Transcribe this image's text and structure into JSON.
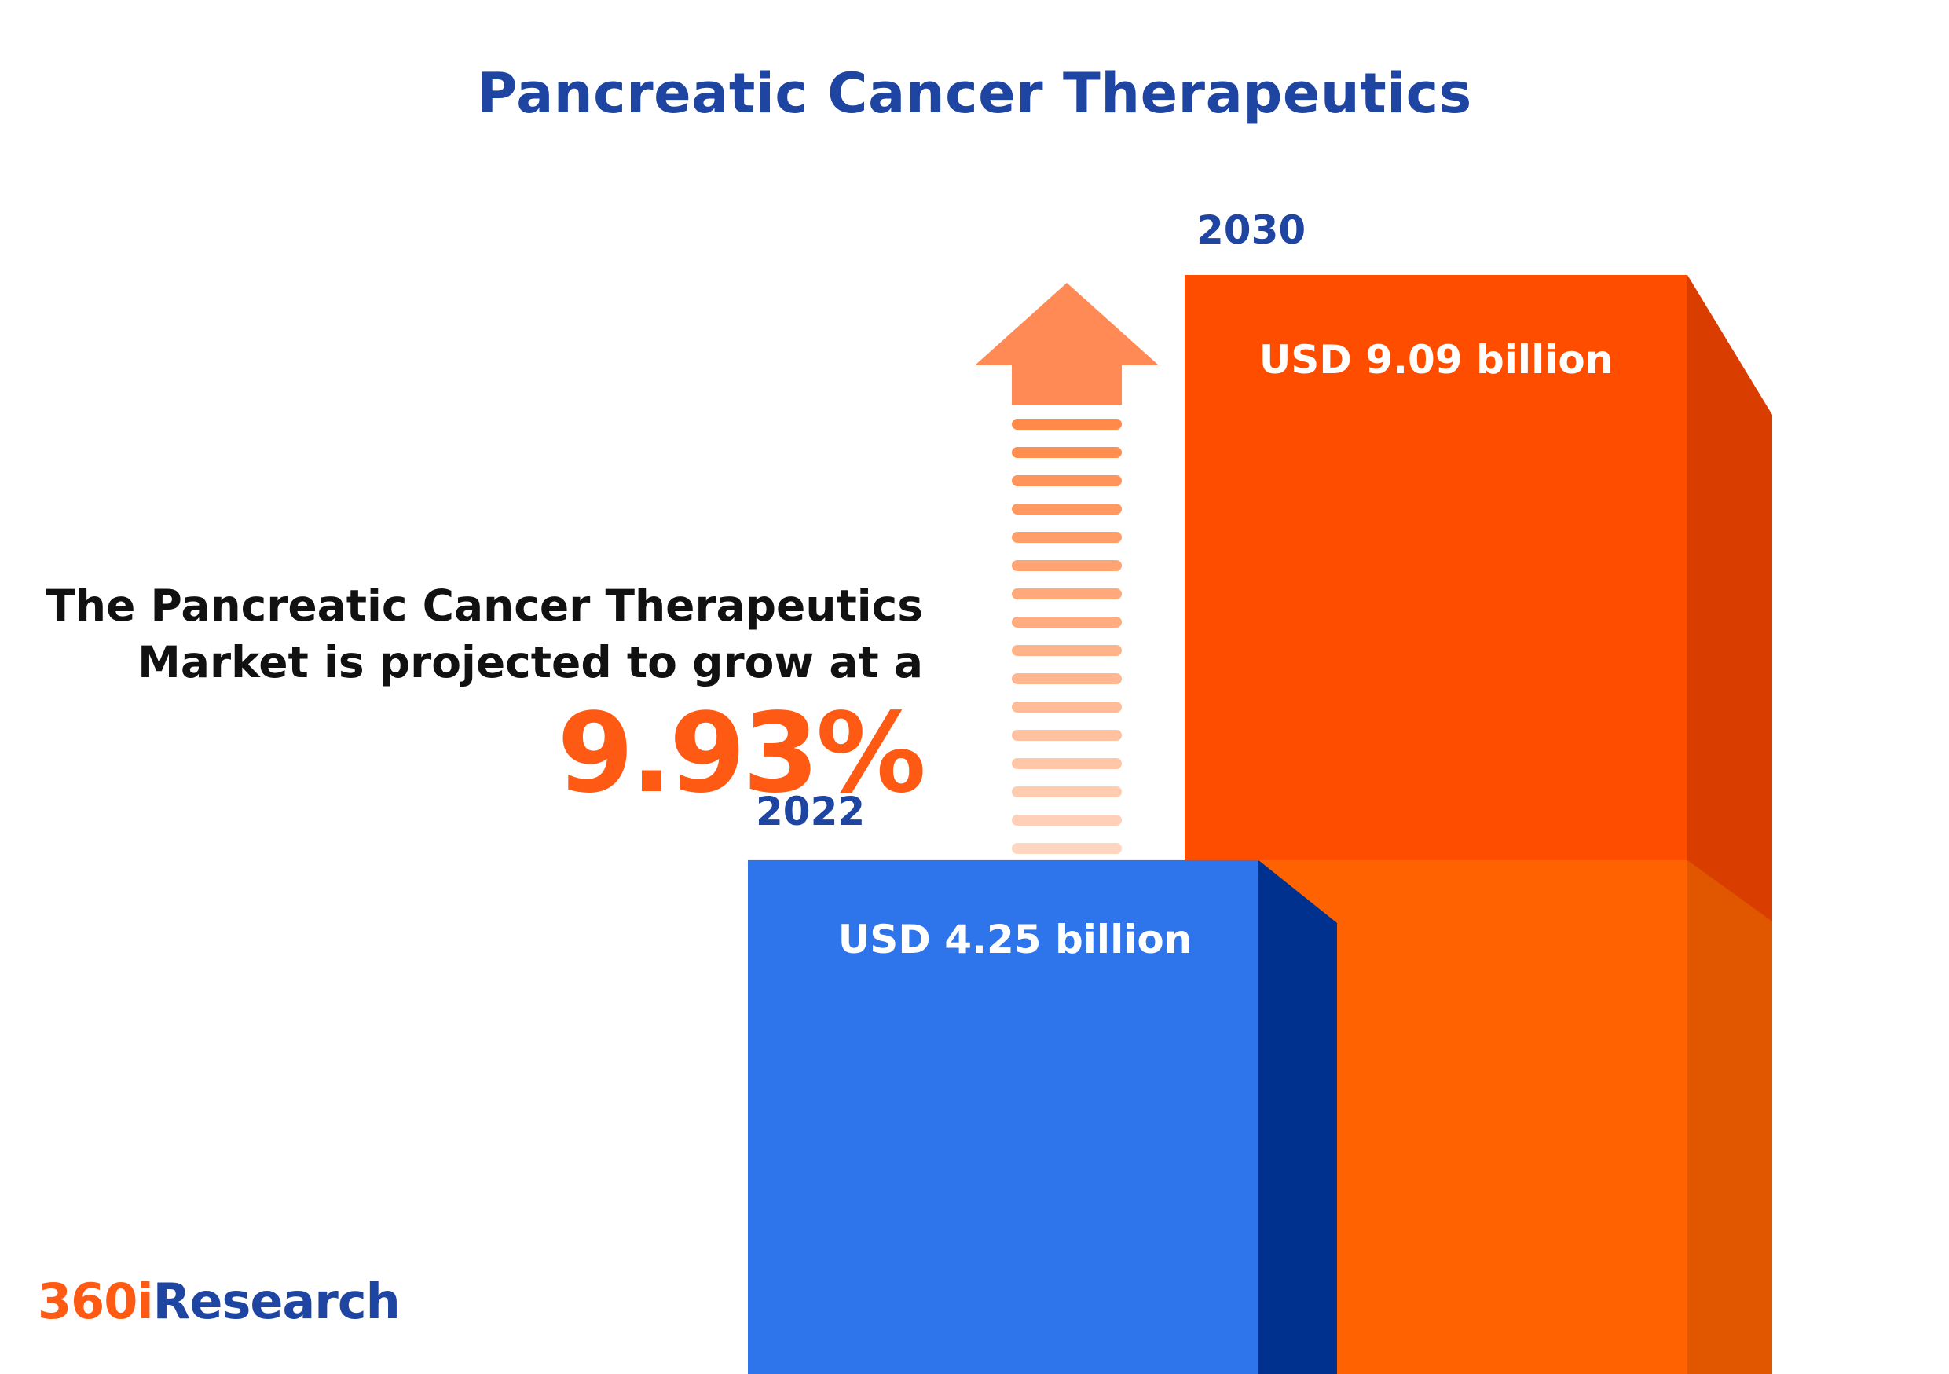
{
  "title": "Pancreatic Cancer Therapeutics",
  "headline": {
    "line1": "The Pancreatic Cancer Therapeutics",
    "line2": "Market is projected to grow at a",
    "cagr": "9.93%"
  },
  "logo": {
    "part1": "360i",
    "part2": "Research"
  },
  "colors": {
    "title": "#1f45a3",
    "accent_orange": "#ff5a14",
    "bar_2022": "#2e74ea",
    "bar_2030": "#ff4d00",
    "year_label": "#1f45a3"
  },
  "icons": [
    "growth-arrow-icon"
  ],
  "chart_data": {
    "type": "bar",
    "title": "Pancreatic Cancer Therapeutics",
    "categories": [
      "2022",
      "2030"
    ],
    "values": [
      4.25,
      9.09
    ],
    "value_labels": [
      "USD 4.25 billion",
      "USD 9.09 billion"
    ],
    "unit": "USD billion",
    "xlabel": "",
    "ylabel": "",
    "cagr": "9.93%",
    "grid": false,
    "legend": "none"
  }
}
